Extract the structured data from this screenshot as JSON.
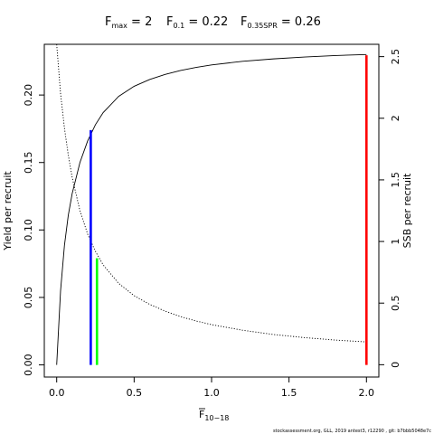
{
  "chart_data": {
    "type": "line",
    "title_parts": [
      {
        "main": "F",
        "sub": "max",
        "rest": " = 2"
      },
      {
        "main": "F",
        "sub": "0.1",
        "rest": " = 0.22"
      },
      {
        "main": "F",
        "sub": "0.35SPR",
        "rest": " = 0.26"
      }
    ],
    "xlabel": {
      "main": "F",
      "sub": "10−18"
    },
    "ylabel_left": "Yield per recruit",
    "ylabel_right": "SSB per recruit",
    "xlim": [
      -0.08,
      2.08
    ],
    "ylim_left": [
      -0.009,
      0.2376
    ],
    "ylim_right": [
      -0.1,
      2.6
    ],
    "x_ticks": [
      0,
      0.5,
      1,
      1.5,
      2
    ],
    "x_tick_labels": [
      "0.0",
      "0.5",
      "1.0",
      "1.5",
      "2.0"
    ],
    "y_left_ticks": [
      0,
      0.05,
      0.1,
      0.15,
      0.2
    ],
    "y_left_tick_labels": [
      "0.00",
      "0.05",
      "0.10",
      "0.15",
      "0.20"
    ],
    "y_right_ticks": [
      0,
      0.5,
      1,
      1.5,
      2,
      2.5
    ],
    "y_right_tick_labels": [
      "0",
      "0.5",
      "1",
      "1.5",
      "2",
      "2.5"
    ],
    "series": [
      {
        "name": "Yield per recruit",
        "axis": "left",
        "style": "solid",
        "color": "#000000",
        "x": [
          0,
          0.025,
          0.05,
          0.075,
          0.1,
          0.15,
          0.2,
          0.25,
          0.3,
          0.4,
          0.5,
          0.6,
          0.7,
          0.8,
          0.9,
          1.0,
          1.2,
          1.4,
          1.6,
          1.8,
          2.0
        ],
        "y": [
          0,
          0.055,
          0.0885,
          0.111,
          0.127,
          0.15,
          0.166,
          0.178,
          0.187,
          0.199,
          0.2065,
          0.2115,
          0.2153,
          0.2182,
          0.2205,
          0.2223,
          0.225,
          0.2268,
          0.2282,
          0.2293,
          0.23
        ]
      },
      {
        "name": "SSB per recruit",
        "axis": "right",
        "style": "dotted",
        "color": "#000000",
        "x": [
          0,
          0.025,
          0.05,
          0.075,
          0.1,
          0.15,
          0.2,
          0.25,
          0.3,
          0.4,
          0.5,
          0.6,
          0.7,
          0.8,
          0.9,
          1.0,
          1.2,
          1.4,
          1.6,
          1.8,
          2.0
        ],
        "y": [
          2.6,
          2.2,
          1.92,
          1.7,
          1.52,
          1.25,
          1.06,
          0.92,
          0.81,
          0.66,
          0.56,
          0.49,
          0.435,
          0.39,
          0.355,
          0.325,
          0.28,
          0.245,
          0.22,
          0.2,
          0.185
        ]
      }
    ],
    "reference_lines": [
      {
        "name": "F0.1",
        "x": 0.22,
        "y_top": 0.174,
        "color": "#0000ff"
      },
      {
        "name": "F0.35SPR",
        "x": 0.26,
        "y_top": 0.079,
        "color": "#00ff00"
      },
      {
        "name": "Fmax",
        "x": 2.0,
        "y_top": 0.2295,
        "color": "#ff0000"
      }
    ],
    "grid": false,
    "legend": "none"
  },
  "footer_text": "stockassessment.org, GLL, 2019 antest3, r12290 , git: b7bbb5048e7c"
}
